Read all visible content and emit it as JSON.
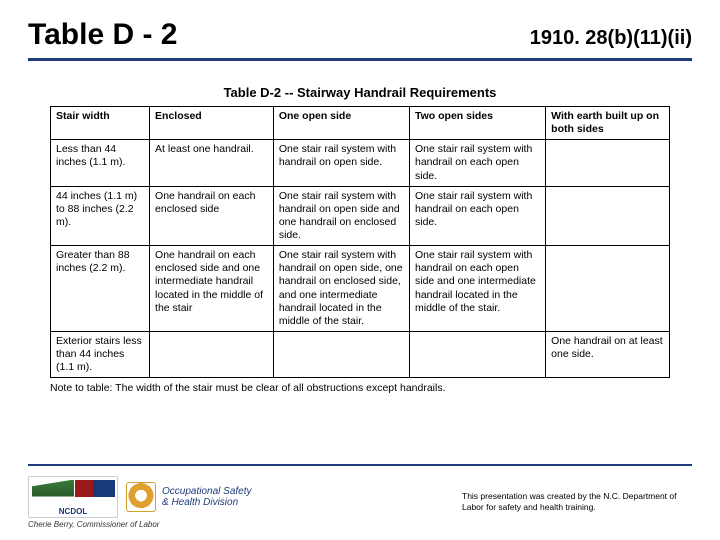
{
  "header": {
    "title": "Table D - 2",
    "reg_ref": "1910. 28(b)(11)(ii)"
  },
  "table": {
    "caption": "Table D-2 -- Stairway Handrail Requirements",
    "columns": [
      "Stair width",
      "Enclosed",
      "One open side",
      "Two open sides",
      "With earth built up on both sides"
    ],
    "rows": [
      {
        "c0": "Less than 44 inches (1.1 m).",
        "c1": "At least one handrail.",
        "c2": "One stair rail system with handrail on open side.",
        "c3": "One stair rail system with handrail on each open side.",
        "c4": ""
      },
      {
        "c0": "44 inches (1.1 m) to 88 inches (2.2 m).",
        "c1": "One handrail on each enclosed side",
        "c2": "One stair rail system with handrail on open side and one handrail on enclosed side.",
        "c3": "One stair rail system with handrail on each open side.",
        "c4": ""
      },
      {
        "c0": "Greater than 88 inches (2.2 m).",
        "c1": "One handrail on each enclosed side and one intermediate handrail located in the middle of the stair",
        "c2": "One stair rail system with handrail on open side, one handrail on enclosed side, and one intermediate handrail located in the middle of the stair.",
        "c3": "One stair rail system with handrail on each open side and one intermediate handrail located in the middle of the stair.",
        "c4": ""
      },
      {
        "c0": "Exterior stairs less than 44 inches (1.1 m).",
        "c1": "",
        "c2": "",
        "c3": "",
        "c4": "One handrail on at least one side."
      }
    ],
    "note": "Note to table:  The width of the stair must be clear of all obstructions except handrails."
  },
  "footer": {
    "ncdol_label": "NCDOL",
    "ncdol_sub": "N.C. Department of Labor",
    "commissioner": "Cherie Berry, Commissioner of Labor",
    "osha_line1": "Occupational Safety",
    "osha_line2": "& Health Division",
    "credit": "This presentation was created by the N.C. Department of Labor for safety and health training."
  },
  "colors": {
    "rule": "#1f3b7a",
    "text": "#000000",
    "bg": "#ffffff"
  }
}
